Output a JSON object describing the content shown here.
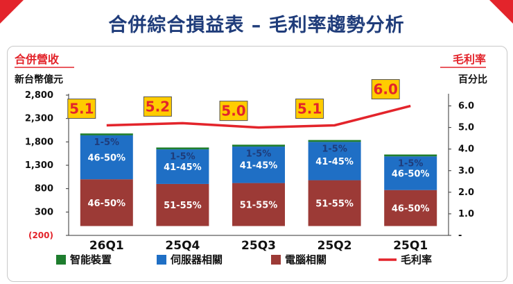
{
  "title": "合併綜合損益表 – 毛利率趨勢分析",
  "colors": {
    "accent": "#e3242b",
    "title": "#1f3c7a",
    "smart_devices": "#1e7d2e",
    "server": "#1f6fc5",
    "pc": "#9c3a36",
    "margin_line": "#e3242b",
    "callout_fill": "#ffcc00"
  },
  "chart_data": {
    "type": "bar",
    "stacked": true,
    "left_axis_label": "合併營收",
    "left_axis_unit": "新台幣億元",
    "right_axis_label": "毛利率",
    "right_axis_unit": "百分比",
    "left_ticks": [
      "(200)",
      "300",
      "800",
      "1,300",
      "1,800",
      "2,300",
      "2,800"
    ],
    "right_ticks": [
      "-",
      "1.0",
      "2.0",
      "3.0",
      "4.0",
      "5.0",
      "6.0"
    ],
    "ylim": [
      -200,
      2800
    ],
    "y2lim": [
      0,
      6.5
    ],
    "categories": [
      "26Q1",
      "25Q4",
      "25Q3",
      "25Q2",
      "25Q1"
    ],
    "series": [
      {
        "name": "電腦相關",
        "values": [
          1000,
          900,
          920,
          980,
          770
        ],
        "labels": [
          "46-50%",
          "51-55%",
          "51-55%",
          "51-55%",
          "46-50%"
        ]
      },
      {
        "name": "伺服器相關",
        "values": [
          940,
          740,
          780,
          820,
          720
        ],
        "labels": [
          "46-50%",
          "41-45%",
          "41-45%",
          "41-45%",
          "46-50%"
        ]
      },
      {
        "name": "智能裝置",
        "values": [
          40,
          40,
          40,
          40,
          40
        ],
        "labels": [
          "1-5%",
          "1-5%",
          "1-5%",
          "1-5%",
          "1-5%"
        ]
      }
    ],
    "gross_margin": {
      "name": "毛利率",
      "values": [
        5.1,
        5.2,
        5.0,
        5.1,
        6.0
      ],
      "labels": [
        "5.1",
        "5.2",
        "5.0",
        "5.1",
        "6.0"
      ]
    },
    "legend": [
      "智能裝置",
      "伺服器相關",
      "電腦相關",
      "毛利率"
    ],
    "legend_position": "bottom",
    "grid": false
  }
}
